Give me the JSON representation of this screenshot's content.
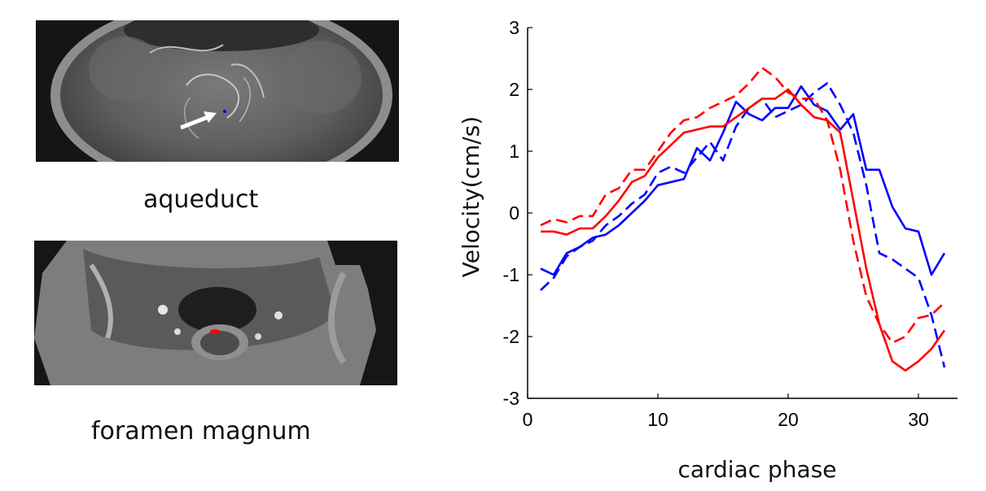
{
  "panels": {
    "top_caption": "aqueduct",
    "bottom_caption": "foramen magnum"
  },
  "colors": {
    "aqueduct": "#0000ff",
    "foramen_magnum": "#ff0000"
  },
  "chart_data": {
    "type": "line",
    "title": "",
    "xlabel": "cardiac phase",
    "ylabel": "Velocity(cm/s)",
    "xlim": [
      0,
      33
    ],
    "ylim": [
      -3,
      3
    ],
    "xticks": [
      0,
      10,
      20,
      30
    ],
    "yticks": [
      3,
      2,
      1,
      0,
      -1,
      -2,
      -3
    ],
    "grid": false,
    "series": [
      {
        "name": "aqueduct solid",
        "color": "#0000ff",
        "dash": "solid",
        "x": [
          1,
          2,
          3,
          4,
          5,
          6,
          7,
          8,
          9,
          10,
          11,
          12,
          13,
          14,
          15,
          16,
          17,
          18,
          19,
          20,
          21,
          22,
          23,
          24,
          25,
          26,
          27,
          28,
          29,
          30,
          31,
          32
        ],
        "y": [
          -0.9,
          -1.0,
          -0.65,
          -0.55,
          -0.4,
          -0.35,
          -0.2,
          0.0,
          0.2,
          0.45,
          0.5,
          0.55,
          1.05,
          0.85,
          1.3,
          1.8,
          1.6,
          1.5,
          1.7,
          1.7,
          2.05,
          1.75,
          1.65,
          1.35,
          1.6,
          0.7,
          0.7,
          0.1,
          -0.25,
          -0.3,
          -1.0,
          -0.65
        ]
      },
      {
        "name": "aqueduct dashed",
        "color": "#0000ff",
        "dash": "dashed",
        "x": [
          1,
          2,
          3,
          4,
          5,
          6,
          7,
          8,
          9,
          10,
          11,
          12,
          13,
          14,
          15,
          16,
          17,
          18,
          19,
          20,
          21,
          22,
          23,
          24,
          25,
          26,
          27,
          28,
          29,
          30,
          31,
          32
        ],
        "y": [
          -1.25,
          -1.05,
          -0.7,
          -0.55,
          -0.45,
          -0.2,
          -0.05,
          0.15,
          0.3,
          0.65,
          0.75,
          0.65,
          0.9,
          1.15,
          0.85,
          1.4,
          1.7,
          1.85,
          1.55,
          1.65,
          1.75,
          1.95,
          2.1,
          1.75,
          1.3,
          0.45,
          -0.65,
          -0.75,
          -0.9,
          -1.05,
          -1.65,
          -2.5
        ]
      },
      {
        "name": "foramen magnum solid",
        "color": "#ff0000",
        "dash": "solid",
        "x": [
          1,
          2,
          3,
          4,
          5,
          6,
          7,
          8,
          9,
          10,
          11,
          12,
          13,
          14,
          15,
          16,
          17,
          18,
          19,
          20,
          21,
          22,
          23,
          24,
          25,
          26,
          27,
          28,
          29,
          30,
          31,
          32
        ],
        "y": [
          -0.3,
          -0.3,
          -0.35,
          -0.25,
          -0.25,
          -0.05,
          0.2,
          0.5,
          0.6,
          0.9,
          1.1,
          1.3,
          1.35,
          1.4,
          1.4,
          1.55,
          1.7,
          1.85,
          1.85,
          2.0,
          1.75,
          1.55,
          1.5,
          1.3,
          0.2,
          -0.9,
          -1.8,
          -2.4,
          -2.55,
          -2.4,
          -2.2,
          -1.9
        ]
      },
      {
        "name": "foramen magnum dashed",
        "color": "#ff0000",
        "dash": "dashed",
        "x": [
          1,
          2,
          3,
          4,
          5,
          6,
          7,
          8,
          9,
          10,
          11,
          12,
          13,
          14,
          15,
          16,
          17,
          18,
          19,
          20,
          21,
          22,
          23,
          24,
          25,
          26,
          27,
          28,
          29,
          30,
          31,
          32
        ],
        "y": [
          -0.2,
          -0.1,
          -0.15,
          -0.05,
          -0.05,
          0.3,
          0.4,
          0.7,
          0.7,
          1.0,
          1.3,
          1.5,
          1.55,
          1.7,
          1.8,
          1.9,
          2.1,
          2.35,
          2.2,
          1.95,
          1.85,
          1.85,
          1.5,
          0.7,
          -0.45,
          -1.35,
          -1.8,
          -2.1,
          -2.0,
          -1.7,
          -1.65,
          -1.45
        ]
      }
    ]
  }
}
